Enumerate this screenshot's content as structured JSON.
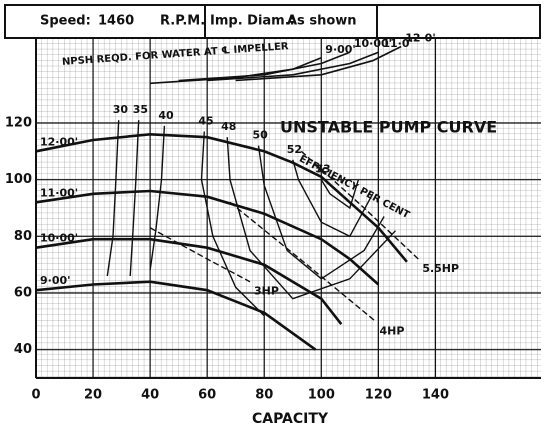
{
  "chart_data": {
    "type": "line",
    "header": {
      "speed_label": "Speed:",
      "speed": "1460",
      "speed_unit": "R.P.M.",
      "diameter_label": "Imp. Diam.:",
      "diameter": "As shown"
    },
    "annotation": "UNSTABLE PUMP CURVE",
    "annotation_color": "#f26a10",
    "efficiency_title": "EFFICIENCY PER CENT",
    "npsh_title": "NPSH REQD. FOR WATER AT ℄ IMPELLER",
    "x_label": "CAPACITY",
    "xlim": [
      0,
      177
    ],
    "ylim": [
      30,
      150
    ],
    "xticks": [
      0,
      20,
      40,
      60,
      80,
      100,
      120,
      140
    ],
    "yticks": [
      40,
      60,
      80,
      100,
      120
    ],
    "grid": true,
    "color": "#111111",
    "head_curves": [
      {
        "name": "12·00'",
        "x": [
          0,
          20,
          40,
          60,
          80,
          90,
          100,
          110,
          120,
          130
        ],
        "values": [
          110,
          114,
          116,
          115,
          110,
          106,
          101,
          92,
          83,
          71
        ]
      },
      {
        "name": "11·00'",
        "x": [
          0,
          20,
          40,
          60,
          80,
          100,
          110,
          120
        ],
        "values": [
          92,
          95,
          96,
          94,
          88,
          79,
          72,
          63
        ]
      },
      {
        "name": "10·00'",
        "x": [
          0,
          20,
          40,
          60,
          80,
          100,
          107
        ],
        "values": [
          76,
          79,
          79,
          76,
          70,
          58,
          49
        ]
      },
      {
        "name": "9·00'",
        "x": [
          0,
          20,
          40,
          60,
          80,
          98
        ],
        "values": [
          61,
          63,
          64,
          61,
          53,
          40
        ]
      }
    ],
    "efficiency_curves": [
      {
        "name": "30",
        "x": [
          29,
          28,
          27,
          25
        ],
        "values": [
          121,
          100,
          80,
          66
        ]
      },
      {
        "name": "35",
        "x": [
          36,
          35,
          34,
          33
        ],
        "values": [
          121,
          100,
          82,
          66
        ]
      },
      {
        "name": "40",
        "x": [
          45,
          44,
          42,
          40
        ],
        "values": [
          119,
          100,
          82,
          68
        ]
      },
      {
        "name": "45",
        "x": [
          59,
          58,
          62,
          70,
          80
        ],
        "values": [
          117,
          100,
          80,
          62,
          52
        ]
      },
      {
        "name": "48",
        "x": [
          67,
          68,
          75,
          90,
          110,
          126
        ],
        "values": [
          115,
          100,
          75,
          58,
          65,
          82
        ]
      },
      {
        "name": "50",
        "x": [
          78,
          80,
          88,
          100,
          115,
          122
        ],
        "values": [
          112,
          98,
          75,
          65,
          75,
          87
        ]
      },
      {
        "name": "52",
        "x": [
          90,
          92,
          100,
          110,
          118
        ],
        "values": [
          107,
          100,
          85,
          80,
          95
        ]
      },
      {
        "name": "53",
        "x": [
          100,
          103,
          110,
          113
        ],
        "values": [
          100,
          95,
          90,
          100
        ]
      }
    ],
    "power_curves": [
      {
        "name": "3HP",
        "x": [
          40,
          60,
          75
        ],
        "values": [
          83,
          72,
          64
        ]
      },
      {
        "name": "4HP",
        "x": [
          68,
          95,
          119
        ],
        "values": [
          92,
          70,
          50
        ]
      },
      {
        "name": "5.5HP",
        "x": [
          93,
          115,
          134
        ],
        "values": [
          110,
          90,
          72
        ]
      }
    ],
    "npsh_curves": [
      {
        "name": "9·00'",
        "x": [
          40,
          70,
          90,
          100
        ],
        "values": [
          134,
          136,
          139,
          143
        ]
      },
      {
        "name": "10·00'",
        "x": [
          50,
          80,
          100,
          110
        ],
        "values": [
          135,
          137,
          141,
          145
        ]
      },
      {
        "name": "11·0'",
        "x": [
          60,
          90,
          110,
          120
        ],
        "values": [
          135,
          137,
          141,
          145
        ]
      },
      {
        "name": "12·0'",
        "x": [
          70,
          100,
          118,
          128
        ],
        "values": [
          135,
          137,
          142,
          147
        ]
      }
    ]
  }
}
